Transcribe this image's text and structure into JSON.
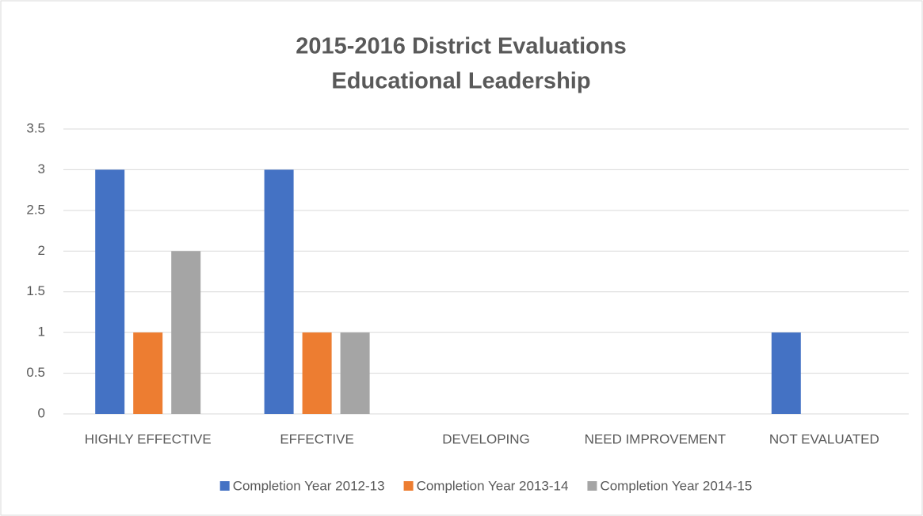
{
  "chart_data": {
    "type": "bar",
    "title": [
      "2015-2016 District Evaluations",
      "Educational Leadership"
    ],
    "categories": [
      "HIGHLY EFFECTIVE",
      "EFFECTIVE",
      "DEVELOPING",
      "NEED IMPROVEMENT",
      "NOT EVALUATED"
    ],
    "series": [
      {
        "name": "Completion Year 2012-13",
        "color": "#4472c4",
        "values": [
          3,
          3,
          0,
          0,
          1
        ]
      },
      {
        "name": "Completion Year 2013-14",
        "color": "#ed7d31",
        "values": [
          1,
          1,
          0,
          0,
          0
        ]
      },
      {
        "name": "Completion Year 2014-15",
        "color": "#a5a5a5",
        "values": [
          2,
          1,
          0,
          0,
          0
        ]
      }
    ],
    "ylim": [
      0,
      3.5
    ],
    "yticks": [
      0,
      0.5,
      1,
      1.5,
      2,
      2.5,
      3,
      3.5
    ],
    "grid": true,
    "legend": "bottom"
  }
}
